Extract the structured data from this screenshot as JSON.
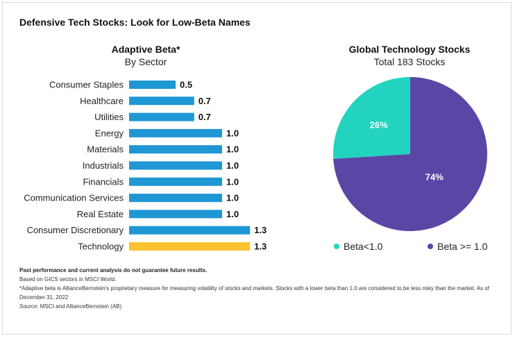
{
  "title": "Defensive Tech Stocks: Look for Low-Beta Names",
  "left_panel": {
    "title": "Adaptive Beta*",
    "subtitle": "By Sector"
  },
  "right_panel": {
    "title": "Global Technology Stocks",
    "subtitle": "Total 183 Stocks"
  },
  "chart_data": [
    {
      "type": "bar",
      "orientation": "horizontal",
      "title": "Adaptive Beta*",
      "subtitle": "By Sector",
      "categories": [
        "Consumer Staples",
        "Healthcare",
        "Utilities",
        "Energy",
        "Materials",
        "Industrials",
        "Financials",
        "Communication Services",
        "Real Estate",
        "Consumer Discretionary",
        "Technology"
      ],
      "values": [
        0.5,
        0.7,
        0.7,
        1.0,
        1.0,
        1.0,
        1.0,
        1.0,
        1.0,
        1.3,
        1.3
      ],
      "value_labels": [
        "0.5",
        "0.7",
        "0.7",
        "1.0",
        "1.0",
        "1.0",
        "1.0",
        "1.0",
        "1.0",
        "1.3",
        "1.3"
      ],
      "highlight": "Technology",
      "colors": {
        "default": "#1f97d4",
        "highlight": "#fcc22d"
      },
      "xlim": [
        0,
        1.3
      ],
      "grid": false,
      "axes_visible": false
    },
    {
      "type": "pie",
      "title": "Global Technology Stocks",
      "subtitle": "Total 183 Stocks",
      "slices": [
        {
          "label": "Beta<1.0",
          "value": 26,
          "value_label": "26%",
          "color": "#22d4c0"
        },
        {
          "label": "Beta >= 1.0",
          "value": 74,
          "value_label": "74%",
          "color": "#5b46a6"
        }
      ],
      "start": "top",
      "direction": "counterclockwise",
      "legend_position": "bottom"
    }
  ],
  "footnotes": {
    "disclaimer": "Past performance and current analysis do not guarantee future results.",
    "basis": "Based on GICS sectors in MSCI World.",
    "definition_line1": "*Adaptive beta is AllianceBernstein's proprietary measure for measuring volatility of stocks and markets. Stocks with a lower beta than 1.0 are considered to be less risky than the market. As of",
    "definition_line2": "December 31, 2022",
    "source": "Source: MSCI and AllianceBernstein (AB)"
  }
}
